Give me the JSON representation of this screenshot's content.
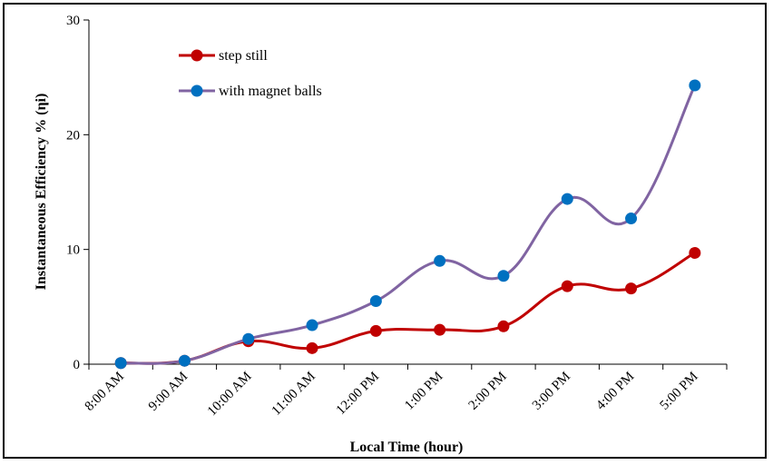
{
  "chart_data": {
    "type": "line",
    "title": "",
    "xlabel": "Local Time (hour)",
    "ylabel": "Instantaneous Efficiency % (ηi)",
    "categories": [
      "8:00 AM",
      "9:00 AM",
      "10:00 AM",
      "11:00 AM",
      "12:00 PM",
      "1:00 PM",
      "2:00 PM",
      "3:00 PM",
      "4:00 PM",
      "5:00 PM"
    ],
    "ylim": [
      0,
      30
    ],
    "yticks": [
      0,
      10,
      20,
      30
    ],
    "grid": false,
    "legend_position": "top-left",
    "series": [
      {
        "name": "step still",
        "color": "#c00000",
        "values": [
          0.1,
          0.3,
          2.0,
          1.4,
          2.9,
          3.0,
          3.3,
          6.8,
          6.6,
          9.7
        ]
      },
      {
        "name": "with magnet balls",
        "color": "#8064a2",
        "marker_color": "#0070c0",
        "values": [
          0.1,
          0.3,
          2.2,
          3.4,
          5.5,
          9.0,
          7.7,
          14.4,
          12.7,
          24.3
        ]
      }
    ]
  }
}
